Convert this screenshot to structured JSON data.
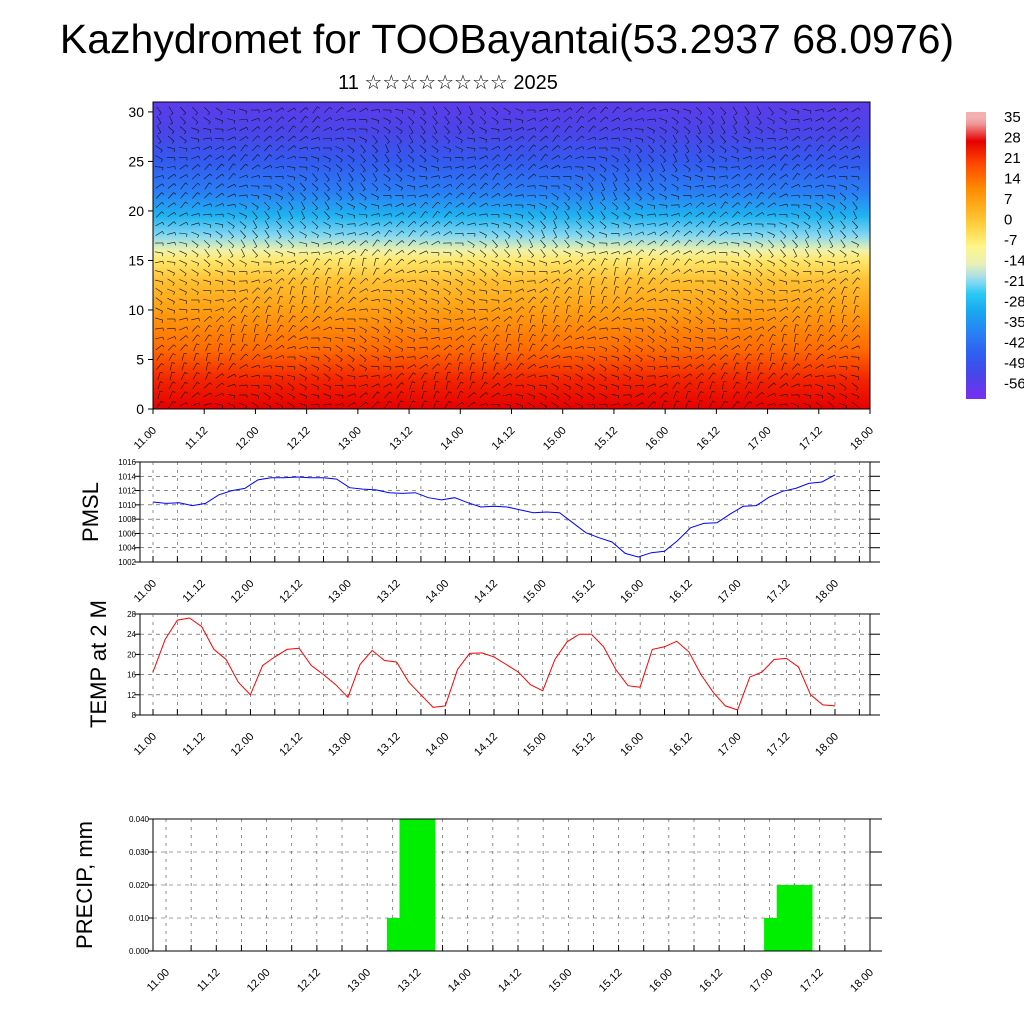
{
  "title": "Kazhydromet for TOOBayantai(53.2937 68.0976)",
  "subtitle": "11 ☆☆☆☆☆☆☆☆ 2025",
  "chart_data": [
    {
      "type": "heatmap",
      "name": "cross-section",
      "y_ticks": [
        "0",
        "5",
        "10",
        "15",
        "20",
        "25",
        "30"
      ],
      "ylim": [
        0,
        31
      ],
      "x_ticks": [
        "11.00",
        "11.12",
        "12.00",
        "12.12",
        "13.00",
        "13.12",
        "14.00",
        "14.12",
        "15.00",
        "15.12",
        "16.00",
        "16.12",
        "17.00",
        "17.12",
        "18.00"
      ],
      "colorbar_labels": [
        "35",
        "28",
        "21",
        "14",
        "7",
        "0",
        "-7",
        "-14",
        "-21",
        "-28",
        "-35",
        "-42",
        "-49",
        "-56"
      ],
      "field_profile": [
        {
          "level": 0,
          "value": 28
        },
        {
          "level": 3,
          "value": 24
        },
        {
          "level": 6,
          "value": 16
        },
        {
          "level": 10,
          "value": 8
        },
        {
          "level": 13,
          "value": 2
        },
        {
          "level": 15,
          "value": -5
        },
        {
          "level": 16,
          "value": -12
        },
        {
          "level": 17.5,
          "value": -20
        },
        {
          "level": 19.5,
          "value": -28
        },
        {
          "level": 22,
          "value": -38
        },
        {
          "level": 25,
          "value": -46
        },
        {
          "level": 28,
          "value": -52
        },
        {
          "level": 31,
          "value": -55
        }
      ]
    },
    {
      "type": "line",
      "ylabel": "PMSL",
      "ylim": [
        1002,
        1016
      ],
      "y_ticks": [
        "1002",
        "1004",
        "1006",
        "1008",
        "1010",
        "1012",
        "1014",
        "1016"
      ],
      "x_ticks": [
        "11.00",
        "11.12",
        "12.00",
        "12.12",
        "13.00",
        "13.12",
        "14.00",
        "14.12",
        "15.00",
        "15.12",
        "16.00",
        "16.12",
        "17.00",
        "17.12",
        "18.00"
      ],
      "series": [
        {
          "color": "#0000ff",
          "values": [
            1010.4,
            1010.2,
            1010.3,
            1009.9,
            1010.2,
            1011.4,
            1012.0,
            1012.3,
            1013.5,
            1013.8,
            1013.8,
            1013.9,
            1013.8,
            1013.8,
            1013.6,
            1012.4,
            1012.2,
            1012.1,
            1011.7,
            1011.6,
            1011.7,
            1011.0,
            1010.7,
            1011.0,
            1010.3,
            1009.7,
            1009.8,
            1009.7,
            1009.3,
            1008.9,
            1009.0,
            1008.9,
            1007.5,
            1006.1,
            1005.4,
            1004.8,
            1003.2,
            1002.7,
            1003.3,
            1003.5,
            1005.0,
            1006.8,
            1007.4,
            1007.5,
            1008.7,
            1009.8,
            1009.9,
            1011.1,
            1011.9,
            1012.3,
            1013.0,
            1013.2,
            1014.2
          ]
        }
      ]
    },
    {
      "type": "line",
      "ylabel": "TEMP at 2 M",
      "ylim": [
        8,
        28
      ],
      "y_ticks": [
        "8",
        "12",
        "16",
        "20",
        "24",
        "28"
      ],
      "x_ticks": [
        "11.00",
        "11.12",
        "12.00",
        "12.12",
        "13.00",
        "13.12",
        "14.00",
        "14.12",
        "15.00",
        "15.12",
        "16.00",
        "16.12",
        "17.00",
        "17.12",
        "18.00"
      ],
      "series": [
        {
          "color": "#ff0000",
          "values": [
            16.5,
            23.0,
            26.8,
            27.2,
            25.5,
            21.0,
            19.0,
            14.5,
            12.0,
            17.8,
            19.5,
            21.0,
            21.2,
            17.8,
            16.0,
            14.0,
            11.5,
            18.0,
            20.8,
            18.8,
            18.5,
            14.5,
            12.0,
            9.5,
            9.8,
            17.0,
            20.2,
            20.3,
            19.5,
            18.0,
            16.5,
            14.0,
            12.8,
            19.0,
            22.5,
            24.0,
            24.0,
            21.5,
            17.0,
            13.8,
            13.5,
            21.0,
            21.5,
            22.6,
            20.5,
            16.0,
            12.5,
            9.8,
            9.0,
            15.5,
            16.5,
            19.0,
            19.2,
            17.5,
            12.0,
            10.0,
            9.8
          ]
        }
      ]
    },
    {
      "type": "bar",
      "ylabel": "PRECIP, mm",
      "ylim": [
        0,
        0.04
      ],
      "y_ticks": [
        "0.000",
        "0.010",
        "0.020",
        "0.030",
        "0.040"
      ],
      "x_ticks": [
        "11.00",
        "11.12",
        "12.00",
        "12.12",
        "13.00",
        "13.12",
        "14.00",
        "14.12",
        "15.00",
        "15.12",
        "16.00",
        "16.12",
        "17.00",
        "17.12",
        "18.00"
      ],
      "bar_color": "#00ee00",
      "bars": [
        {
          "time_hours": 57,
          "value": 0.01
        },
        {
          "time_hours": 60,
          "value": 0.04
        },
        {
          "time_hours": 147,
          "value": 0.01
        },
        {
          "time_hours": 150,
          "value": 0.02
        }
      ]
    }
  ]
}
